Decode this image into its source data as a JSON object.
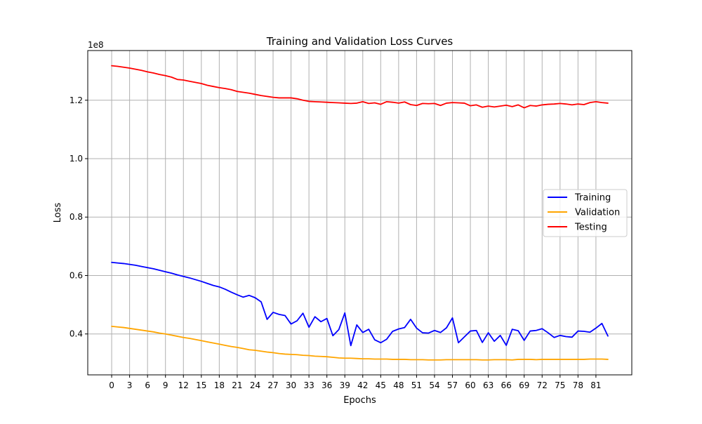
{
  "chart_data": {
    "type": "line",
    "title": "Training and Validation Loss Curves",
    "xlabel": "Epochs",
    "ylabel": "Loss",
    "y_offset_label": "1e8",
    "xlim": [
      -4,
      87
    ],
    "ylim": [
      26000000,
      137000000
    ],
    "x_ticks": [
      0,
      3,
      6,
      9,
      12,
      15,
      18,
      21,
      24,
      27,
      30,
      33,
      36,
      39,
      42,
      45,
      48,
      51,
      54,
      57,
      60,
      63,
      66,
      69,
      72,
      75,
      78,
      81
    ],
    "y_ticks": [
      40000000,
      60000000,
      80000000,
      100000000,
      120000000
    ],
    "y_tick_labels": [
      "0.4",
      "0.6",
      "0.8",
      "1.0",
      "1.2"
    ],
    "grid": true,
    "legend_position": "center-right",
    "series": [
      {
        "name": "Training",
        "color": "#0000ff",
        "values": [
          64500000,
          64300000,
          64100000,
          63800000,
          63500000,
          63100000,
          62700000,
          62300000,
          61800000,
          61300000,
          60800000,
          60200000,
          59700000,
          59200000,
          58600000,
          58000000,
          57300000,
          56600000,
          56100000,
          55300000,
          54300000,
          53400000,
          52600000,
          53200000,
          52400000,
          51000000,
          45000000,
          47400000,
          46700000,
          46300000,
          43400000,
          44500000,
          47100000,
          42300000,
          45900000,
          44200000,
          45300000,
          39400000,
          41500000,
          47200000,
          36000000,
          43100000,
          40500000,
          41600000,
          38000000,
          37000000,
          38200000,
          40900000,
          41700000,
          42200000,
          45000000,
          42000000,
          40400000,
          40300000,
          41200000,
          40500000,
          42100000,
          45500000,
          37000000,
          39000000,
          41000000,
          41200000,
          37100000,
          40400000,
          37500000,
          39500000,
          36100000,
          41600000,
          41100000,
          37800000,
          41000000,
          41200000,
          41800000,
          40400000,
          38800000,
          39500000,
          39100000,
          38900000,
          41000000,
          40900000,
          40600000,
          42000000,
          43600000,
          39300000
        ]
      },
      {
        "name": "Validation",
        "color": "#ffa500",
        "values": [
          42600000,
          42400000,
          42200000,
          41900000,
          41600000,
          41300000,
          41000000,
          40700000,
          40300000,
          40000000,
          39600000,
          39200000,
          38800000,
          38500000,
          38100000,
          37700000,
          37300000,
          36900000,
          36500000,
          36100000,
          35700000,
          35400000,
          35000000,
          34600000,
          34400000,
          34100000,
          33800000,
          33600000,
          33300000,
          33100000,
          33000000,
          32900000,
          32700000,
          32600000,
          32400000,
          32300000,
          32200000,
          32000000,
          31800000,
          31700000,
          31700000,
          31600000,
          31500000,
          31500000,
          31400000,
          31400000,
          31400000,
          31300000,
          31300000,
          31300000,
          31200000,
          31200000,
          31200000,
          31100000,
          31100000,
          31100000,
          31200000,
          31200000,
          31200000,
          31200000,
          31200000,
          31200000,
          31100000,
          31100000,
          31200000,
          31200000,
          31200000,
          31100000,
          31300000,
          31300000,
          31300000,
          31200000,
          31300000,
          31300000,
          31300000,
          31300000,
          31300000,
          31300000,
          31300000,
          31300000,
          31400000,
          31400000,
          31400000,
          31300000
        ]
      },
      {
        "name": "Testing",
        "color": "#ff0000",
        "values": [
          131800000,
          131600000,
          131300000,
          131000000,
          130600000,
          130200000,
          129700000,
          129300000,
          128800000,
          128400000,
          127900000,
          127100000,
          126900000,
          126500000,
          126100000,
          125700000,
          125100000,
          124700000,
          124300000,
          124000000,
          123600000,
          123000000,
          122700000,
          122400000,
          122000000,
          121600000,
          121300000,
          121000000,
          120800000,
          120800000,
          120800000,
          120500000,
          120000000,
          119600000,
          119500000,
          119400000,
          119300000,
          119200000,
          119100000,
          119000000,
          118900000,
          119000000,
          119500000,
          118900000,
          119100000,
          118600000,
          119500000,
          119300000,
          119000000,
          119400000,
          118500000,
          118200000,
          118900000,
          118800000,
          118900000,
          118200000,
          119000000,
          119200000,
          119100000,
          119000000,
          118100000,
          118400000,
          117600000,
          118000000,
          117700000,
          118000000,
          118300000,
          117800000,
          118400000,
          117400000,
          118200000,
          118000000,
          118400000,
          118600000,
          118700000,
          118900000,
          118700000,
          118400000,
          118700000,
          118500000,
          119200000,
          119500000,
          119200000,
          119000000
        ]
      }
    ]
  }
}
